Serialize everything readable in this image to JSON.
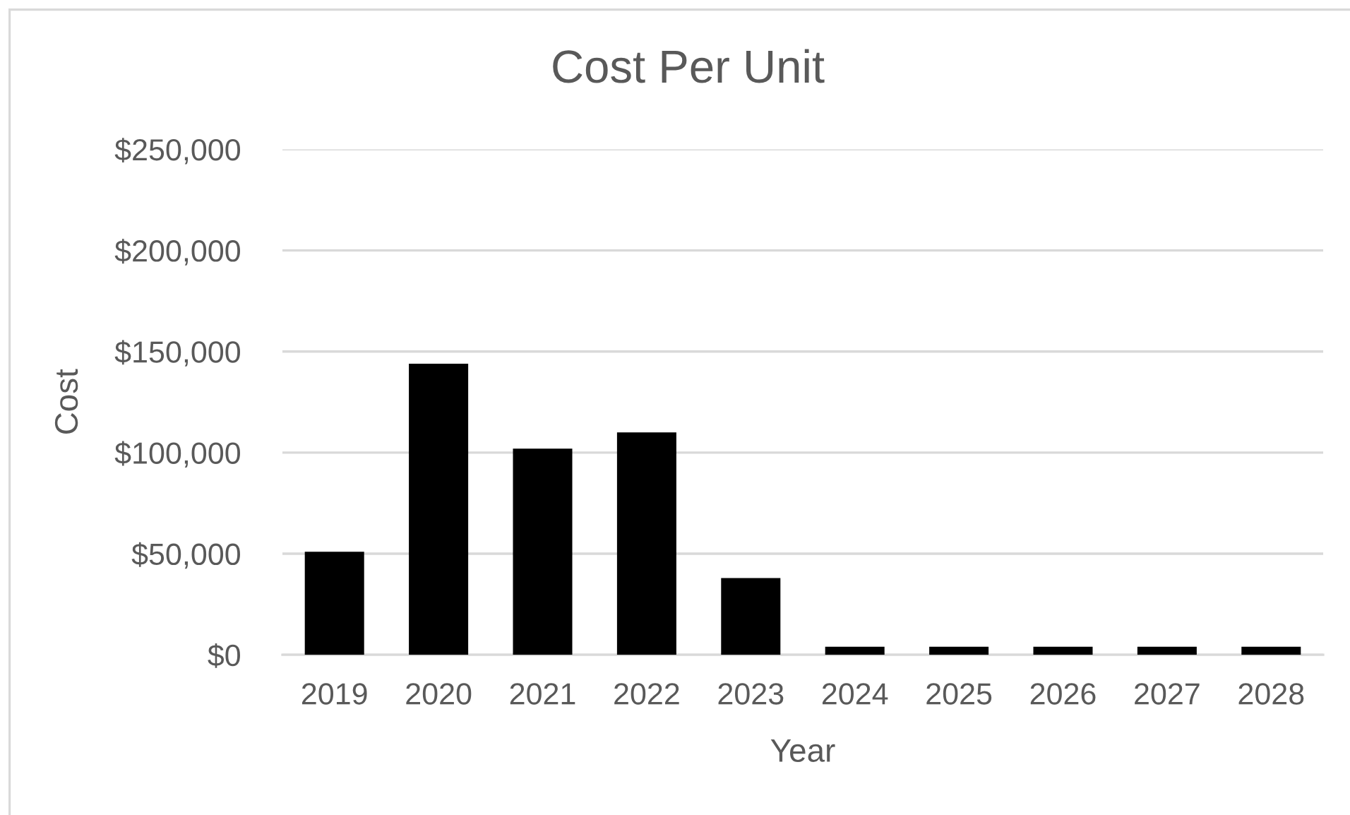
{
  "chart_data": {
    "type": "bar",
    "title": "Cost Per Unit",
    "xlabel": "Year",
    "ylabel": "Cost",
    "categories": [
      "2019",
      "2020",
      "2021",
      "2022",
      "2023",
      "2024",
      "2025",
      "2026",
      "2027",
      "2028"
    ],
    "values": [
      51000,
      144000,
      102000,
      110000,
      38000,
      4000,
      4000,
      4000,
      4000,
      4000
    ],
    "color": "#000000",
    "ylim": [
      0,
      250000
    ],
    "yticks": [
      {
        "value": 0,
        "label": "$0"
      },
      {
        "value": 50000,
        "label": "$50,000"
      },
      {
        "value": 100000,
        "label": "$100,000"
      },
      {
        "value": 150000,
        "label": "$150,000"
      },
      {
        "value": 200000,
        "label": "$200,000"
      },
      {
        "value": 250000,
        "label": "$250,000"
      }
    ],
    "grid": "y"
  }
}
